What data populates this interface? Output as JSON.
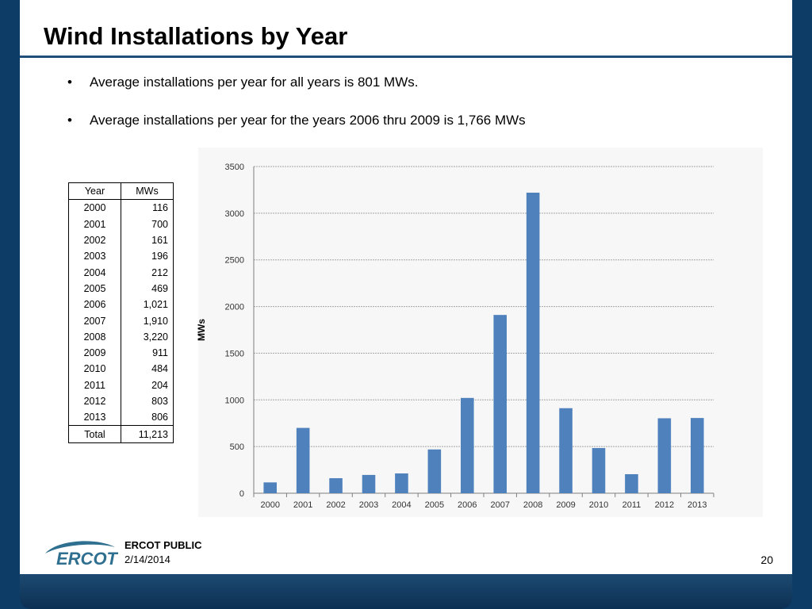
{
  "slide": {
    "title": "Wind Installations by Year",
    "bullets": [
      "Average installations per year for all years is 801 MWs.",
      "Average installations per year for the years 2006 thru 2009 is 1,766 MWs"
    ],
    "bullet_glyph": "•"
  },
  "table": {
    "headers": [
      "Year",
      "MWs"
    ],
    "rows": [
      [
        "2000",
        "116"
      ],
      [
        "2001",
        "700"
      ],
      [
        "2002",
        "161"
      ],
      [
        "2003",
        "196"
      ],
      [
        "2004",
        "212"
      ],
      [
        "2005",
        "469"
      ],
      [
        "2006",
        "1,021"
      ],
      [
        "2007",
        "1,910"
      ],
      [
        "2008",
        "3,220"
      ],
      [
        "2009",
        "911"
      ],
      [
        "2010",
        "484"
      ],
      [
        "2011",
        "204"
      ],
      [
        "2012",
        "803"
      ],
      [
        "2013",
        "806"
      ]
    ],
    "total": [
      "Total",
      "11,213"
    ]
  },
  "chart_data": {
    "type": "bar",
    "categories": [
      "2000",
      "2001",
      "2002",
      "2003",
      "2004",
      "2005",
      "2006",
      "2007",
      "2008",
      "2009",
      "2010",
      "2011",
      "2012",
      "2013"
    ],
    "values": [
      116,
      700,
      161,
      196,
      212,
      469,
      1021,
      1910,
      3220,
      911,
      484,
      204,
      803,
      806
    ],
    "title": "",
    "xlabel": "",
    "ylabel": "MWs",
    "ylim": [
      0,
      3500
    ],
    "yticks": [
      0,
      500,
      1000,
      1500,
      2000,
      2500,
      3000,
      3500
    ],
    "grid": true,
    "legend": "none",
    "bar_color": "#4f81bd"
  },
  "footer": {
    "logo_text": "ERCOT",
    "label": "ERCOT PUBLIC",
    "date": "2/14/2014",
    "page": "20"
  },
  "colors": {
    "frame": "#0d3d66",
    "rule": "#1f4e79",
    "logo": "#2f6f8f"
  }
}
